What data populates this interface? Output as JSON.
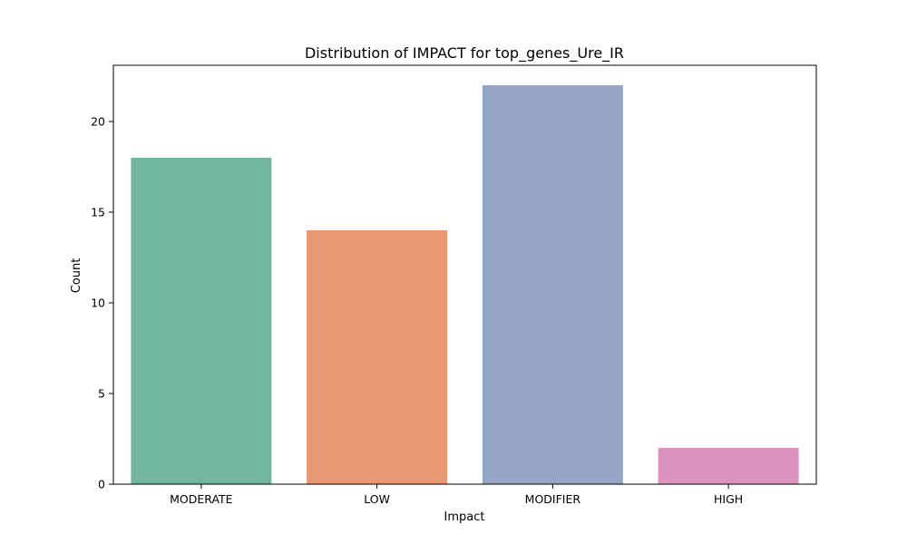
{
  "chart_data": {
    "type": "bar",
    "title": "Distribution of IMPACT for top_genes_Ure_IR",
    "xlabel": "Impact",
    "ylabel": "Count",
    "categories": [
      "MODERATE",
      "LOW",
      "MODIFIER",
      "HIGH"
    ],
    "values": [
      18,
      14,
      22,
      2
    ],
    "colors": [
      "#73b6a0",
      "#e99874",
      "#96a5c4",
      "#dc94bf"
    ],
    "ylim": [
      0,
      23.1
    ],
    "yticks": [
      0,
      5,
      10,
      15,
      20
    ],
    "grid": false
  }
}
